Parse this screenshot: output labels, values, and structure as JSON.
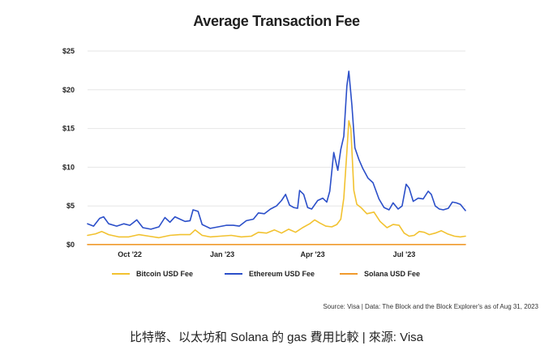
{
  "chart_data": {
    "type": "line",
    "title": "Average Transaction Fee",
    "ylim": [
      0,
      25
    ],
    "xlim": [
      "2022-08-20",
      "2023-08-31"
    ],
    "y_ticks": [
      {
        "value": 0,
        "label": "$0"
      },
      {
        "value": 5,
        "label": "$5"
      },
      {
        "value": 10,
        "label": "$10"
      },
      {
        "value": 15,
        "label": "$15"
      },
      {
        "value": 20,
        "label": "$20"
      },
      {
        "value": 25,
        "label": "$25"
      }
    ],
    "x_ticks": [
      {
        "date": "2022-10-01",
        "label": "Oct '22"
      },
      {
        "date": "2023-01-01",
        "label": "Jan '23"
      },
      {
        "date": "2023-04-01",
        "label": "Apr '23"
      },
      {
        "date": "2023-07-01",
        "label": "Jul '23"
      }
    ],
    "grid": "horizontal",
    "legend_position": "bottom",
    "series": [
      {
        "name": "Ethereum USD Fee",
        "color": "#2b4fc9",
        "points": [
          [
            "2022-08-20",
            2.7
          ],
          [
            "2022-08-26",
            2.4
          ],
          [
            "2022-09-01",
            3.4
          ],
          [
            "2022-09-05",
            3.6
          ],
          [
            "2022-09-10",
            2.7
          ],
          [
            "2022-09-18",
            2.4
          ],
          [
            "2022-09-25",
            2.7
          ],
          [
            "2022-10-01",
            2.5
          ],
          [
            "2022-10-08",
            3.2
          ],
          [
            "2022-10-14",
            2.2
          ],
          [
            "2022-10-22",
            2.0
          ],
          [
            "2022-10-30",
            2.3
          ],
          [
            "2022-11-05",
            3.5
          ],
          [
            "2022-11-10",
            2.9
          ],
          [
            "2022-11-15",
            3.6
          ],
          [
            "2022-11-20",
            3.3
          ],
          [
            "2022-11-25",
            3.0
          ],
          [
            "2022-11-30",
            3.1
          ],
          [
            "2022-12-03",
            4.5
          ],
          [
            "2022-12-08",
            4.3
          ],
          [
            "2022-12-12",
            2.6
          ],
          [
            "2022-12-20",
            2.1
          ],
          [
            "2022-12-28",
            2.3
          ],
          [
            "2023-01-05",
            2.5
          ],
          [
            "2023-01-12",
            2.5
          ],
          [
            "2023-01-18",
            2.4
          ],
          [
            "2023-01-25",
            3.1
          ],
          [
            "2023-02-01",
            3.3
          ],
          [
            "2023-02-06",
            4.1
          ],
          [
            "2023-02-12",
            4.0
          ],
          [
            "2023-02-18",
            4.6
          ],
          [
            "2023-02-24",
            5.0
          ],
          [
            "2023-03-01",
            5.7
          ],
          [
            "2023-03-05",
            6.5
          ],
          [
            "2023-03-09",
            5.1
          ],
          [
            "2023-03-13",
            4.8
          ],
          [
            "2023-03-17",
            4.7
          ],
          [
            "2023-03-19",
            7.0
          ],
          [
            "2023-03-23",
            6.5
          ],
          [
            "2023-03-27",
            4.8
          ],
          [
            "2023-03-31",
            4.6
          ],
          [
            "2023-04-06",
            5.7
          ],
          [
            "2023-04-11",
            6.0
          ],
          [
            "2023-04-15",
            5.5
          ],
          [
            "2023-04-18",
            6.9
          ],
          [
            "2023-04-22",
            11.9
          ],
          [
            "2023-04-26",
            9.6
          ],
          [
            "2023-04-29",
            12.3
          ],
          [
            "2023-05-02",
            14.0
          ],
          [
            "2023-05-05",
            20.5
          ],
          [
            "2023-05-07",
            22.4
          ],
          [
            "2023-05-10",
            18.0
          ],
          [
            "2023-05-13",
            12.5
          ],
          [
            "2023-05-17",
            11.0
          ],
          [
            "2023-05-21",
            9.8
          ],
          [
            "2023-05-26",
            8.6
          ],
          [
            "2023-05-31",
            8.0
          ],
          [
            "2023-06-06",
            5.9
          ],
          [
            "2023-06-11",
            4.8
          ],
          [
            "2023-06-16",
            4.5
          ],
          [
            "2023-06-20",
            5.4
          ],
          [
            "2023-06-25",
            4.6
          ],
          [
            "2023-06-29",
            5.0
          ],
          [
            "2023-07-03",
            7.8
          ],
          [
            "2023-07-06",
            7.3
          ],
          [
            "2023-07-10",
            5.6
          ],
          [
            "2023-07-15",
            6.0
          ],
          [
            "2023-07-20",
            5.9
          ],
          [
            "2023-07-25",
            6.9
          ],
          [
            "2023-07-28",
            6.5
          ],
          [
            "2023-08-01",
            5.0
          ],
          [
            "2023-08-05",
            4.6
          ],
          [
            "2023-08-09",
            4.5
          ],
          [
            "2023-08-14",
            4.7
          ],
          [
            "2023-08-18",
            5.5
          ],
          [
            "2023-08-22",
            5.4
          ],
          [
            "2023-08-26",
            5.2
          ],
          [
            "2023-08-31",
            4.4
          ]
        ]
      },
      {
        "name": "Bitcoin USD Fee",
        "color": "#f2c230",
        "points": [
          [
            "2022-08-20",
            1.2
          ],
          [
            "2022-08-28",
            1.4
          ],
          [
            "2022-09-03",
            1.7
          ],
          [
            "2022-09-10",
            1.3
          ],
          [
            "2022-09-20",
            1.0
          ],
          [
            "2022-09-30",
            1.0
          ],
          [
            "2022-10-10",
            1.3
          ],
          [
            "2022-10-20",
            1.1
          ],
          [
            "2022-10-30",
            0.9
          ],
          [
            "2022-11-10",
            1.2
          ],
          [
            "2022-11-20",
            1.3
          ],
          [
            "2022-11-30",
            1.3
          ],
          [
            "2022-12-05",
            1.9
          ],
          [
            "2022-12-12",
            1.2
          ],
          [
            "2022-12-20",
            1.0
          ],
          [
            "2022-12-30",
            1.1
          ],
          [
            "2023-01-10",
            1.2
          ],
          [
            "2023-01-20",
            1.0
          ],
          [
            "2023-01-30",
            1.1
          ],
          [
            "2023-02-06",
            1.6
          ],
          [
            "2023-02-14",
            1.5
          ],
          [
            "2023-02-22",
            1.9
          ],
          [
            "2023-03-01",
            1.5
          ],
          [
            "2023-03-08",
            2.0
          ],
          [
            "2023-03-15",
            1.6
          ],
          [
            "2023-03-22",
            2.2
          ],
          [
            "2023-03-29",
            2.7
          ],
          [
            "2023-04-03",
            3.2
          ],
          [
            "2023-04-08",
            2.8
          ],
          [
            "2023-04-14",
            2.4
          ],
          [
            "2023-04-20",
            2.3
          ],
          [
            "2023-04-25",
            2.6
          ],
          [
            "2023-04-29",
            3.3
          ],
          [
            "2023-05-02",
            6.0
          ],
          [
            "2023-05-05",
            12.0
          ],
          [
            "2023-05-07",
            16.0
          ],
          [
            "2023-05-09",
            15.0
          ],
          [
            "2023-05-12",
            7.0
          ],
          [
            "2023-05-15",
            5.2
          ],
          [
            "2023-05-19",
            4.8
          ],
          [
            "2023-05-25",
            4.0
          ],
          [
            "2023-06-01",
            4.2
          ],
          [
            "2023-06-07",
            3.0
          ],
          [
            "2023-06-14",
            2.2
          ],
          [
            "2023-06-20",
            2.6
          ],
          [
            "2023-06-26",
            2.5
          ],
          [
            "2023-07-01",
            1.5
          ],
          [
            "2023-07-06",
            1.1
          ],
          [
            "2023-07-11",
            1.2
          ],
          [
            "2023-07-16",
            1.7
          ],
          [
            "2023-07-21",
            1.6
          ],
          [
            "2023-07-26",
            1.3
          ],
          [
            "2023-08-01",
            1.5
          ],
          [
            "2023-08-07",
            1.8
          ],
          [
            "2023-08-13",
            1.4
          ],
          [
            "2023-08-20",
            1.1
          ],
          [
            "2023-08-26",
            1.0
          ],
          [
            "2023-08-31",
            1.1
          ]
        ]
      },
      {
        "name": "Solana USD Fee",
        "color": "#f09a2c",
        "points": [
          [
            "2022-08-20",
            0.02
          ],
          [
            "2023-08-31",
            0.02
          ]
        ]
      }
    ],
    "source": "Source: Visa | Data: The Block and the Block Explorer's as of Aug 31, 2023"
  },
  "caption": "比特幣、以太坊和 Solana 的 gas 費用比較 | 來源: Visa"
}
